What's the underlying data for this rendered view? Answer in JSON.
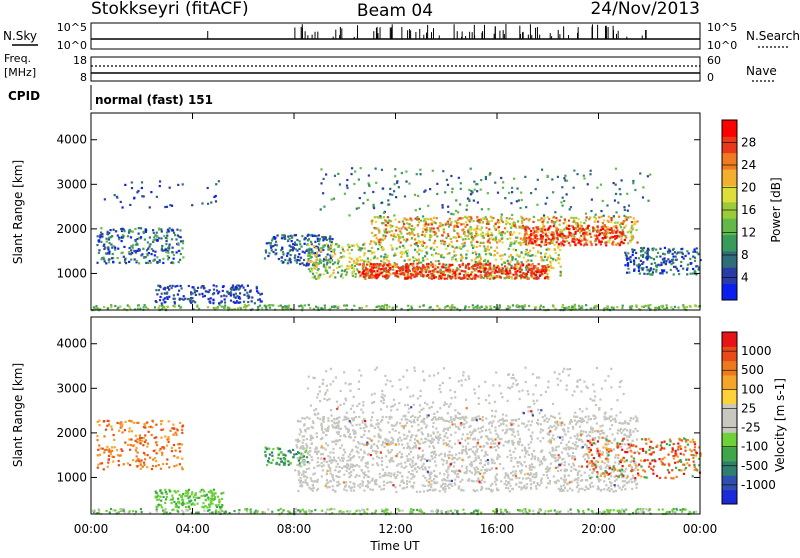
{
  "header": {
    "station": "Stokkseyri (fitACF)",
    "beam": "Beam 04",
    "date": "24/Nov/2013"
  },
  "nsky_panel": {
    "left_label": "N.Sky",
    "left_ticks": [
      "10^5",
      "10^0"
    ],
    "right_ticks": [
      "10^5",
      "10^0"
    ],
    "right_label": "N.Search"
  },
  "freq_panel": {
    "left_label_1": "Freq.",
    "left_label_2": "[MHz]",
    "left_ticks": [
      "18",
      "8"
    ],
    "right_ticks": [
      "60",
      "0"
    ],
    "right_label": "Nave"
  },
  "cpid": {
    "label": "CPID",
    "value": "normal (fast) 151"
  },
  "chart_data": [
    {
      "type": "heatmap",
      "parameter": "power",
      "ylabel": "Slant Range [km]",
      "ylim": [
        180,
        4600
      ],
      "yticks": [
        1000,
        2000,
        3000,
        4000
      ],
      "xlim": [
        0,
        24
      ],
      "colorbar": {
        "label": "Power [dB]",
        "ticks": [
          "28",
          "24",
          "20",
          "16",
          "12",
          "8",
          "4"
        ],
        "colors": [
          "#0a1ef0",
          "#2a3aa6",
          "#2f6d7a",
          "#3a9a5c",
          "#63b84a",
          "#9ccb3a",
          "#dede3a",
          "#f2b030",
          "#f07a22",
          "#e83a1a",
          "#ff0000"
        ]
      }
    },
    {
      "type": "heatmap",
      "parameter": "velocity",
      "ylabel": "Slant Range [km]",
      "ylim": [
        180,
        4600
      ],
      "yticks": [
        1000,
        2000,
        3000,
        4000
      ],
      "xlim": [
        0,
        24
      ],
      "colorbar": {
        "label": "Velocity [m s-1]",
        "ticks": [
          "1000",
          "500",
          "100",
          "25",
          "-25",
          "-100",
          "-500",
          "-1000"
        ],
        "colors": [
          "#1a2ad8",
          "#2f4fb0",
          "#2e7f6e",
          "#3fa74a",
          "#6fd13a",
          "#c8c8c0",
          "#c8c8c0",
          "#ffd23a",
          "#f5a52a",
          "#ee7a1e",
          "#ea4a18",
          "#e61414"
        ]
      }
    }
  ],
  "x_axis": {
    "ticks": [
      "00:00",
      "04:00",
      "08:00",
      "12:00",
      "16:00",
      "20:00",
      "00:00"
    ],
    "label": "Time UT"
  }
}
